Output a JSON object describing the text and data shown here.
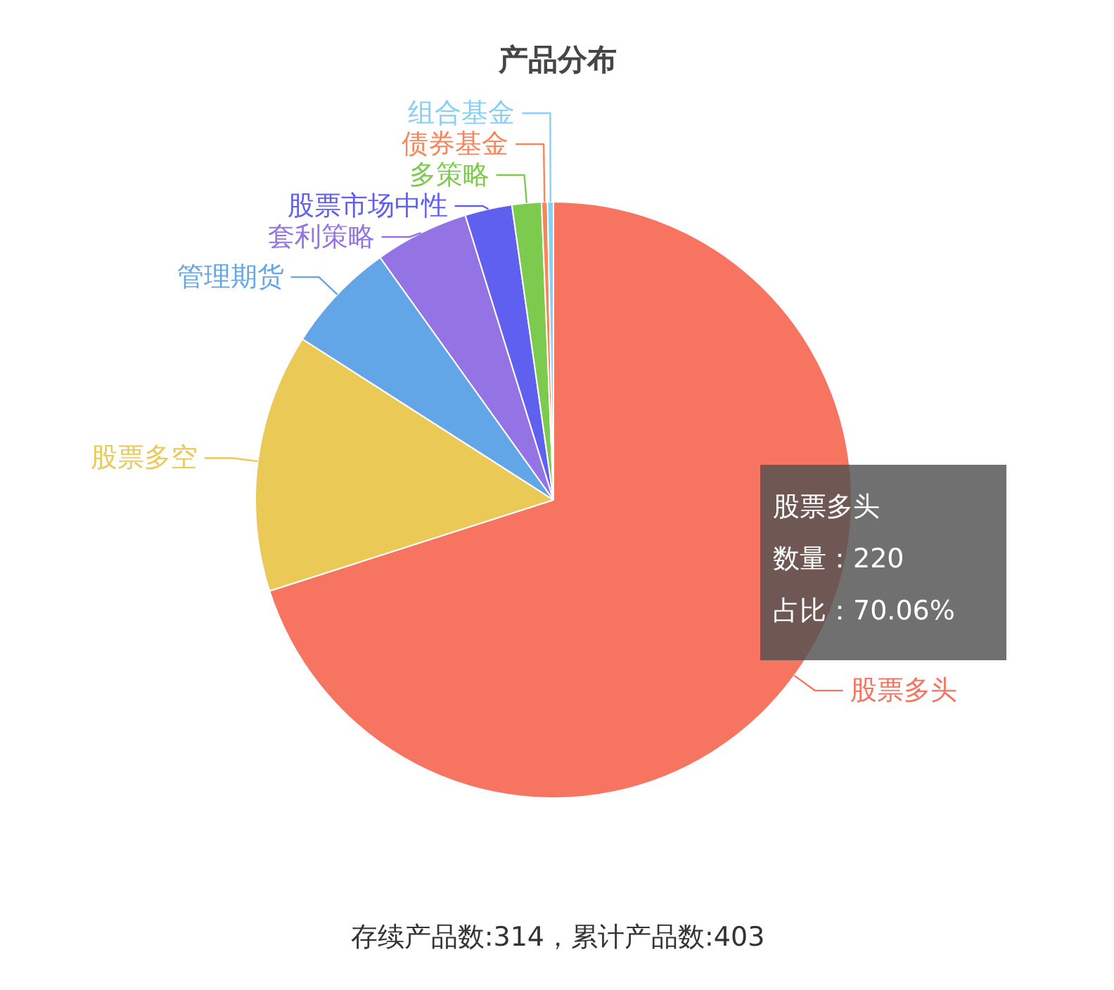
{
  "chart_data": {
    "type": "pie",
    "title": "产品分布",
    "categories": [
      "股票多头",
      "股票多空",
      "管理期货",
      "套利策略",
      "股票市场中性",
      "多策略",
      "债券基金",
      "组合基金"
    ],
    "values": [
      70.06,
      14.01,
      6.05,
      5.1,
      2.55,
      1.59,
      0.32,
      0.32
    ],
    "colors": [
      "#f67460",
      "#ebc957",
      "#62a6e8",
      "#9473e4",
      "#6060f0",
      "#7ccb4f",
      "#f8855a",
      "#85d0f5"
    ],
    "annotations": [
      "股票多头",
      "数量：220",
      "占比：70.06%",
      "存续产品数:314，累计产品数:403"
    ]
  }
}
